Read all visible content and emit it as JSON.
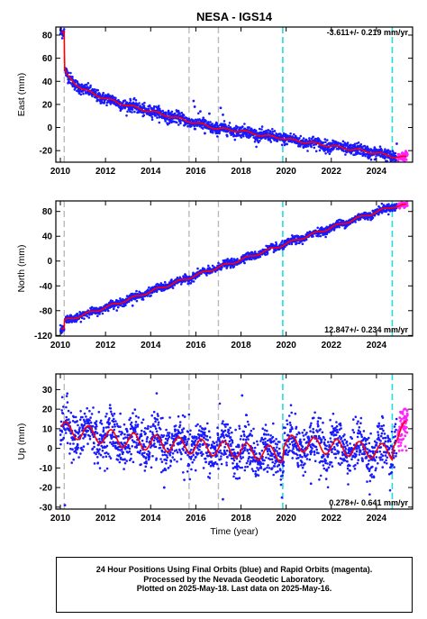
{
  "title": "NESA - IGS14",
  "chart_data": [
    {
      "type": "scatter",
      "ylabel": "East (mm)",
      "xlim": [
        2009.8,
        2025.6
      ],
      "ylim": [
        -30,
        87
      ],
      "yticks": [
        -20,
        0,
        20,
        40,
        60,
        80
      ],
      "xticks": [
        2010,
        2012,
        2014,
        2016,
        2018,
        2020,
        2022,
        2024
      ],
      "rate": "-3.611+/- 0.219 mm/yr",
      "model_points": [
        [
          2010.05,
          82
        ],
        [
          2010.17,
          82
        ],
        [
          2010.19,
          50
        ],
        [
          2010.3,
          45
        ],
        [
          2010.6,
          39
        ],
        [
          2011,
          33
        ],
        [
          2012,
          25
        ],
        [
          2013,
          19
        ],
        [
          2014,
          14
        ],
        [
          2015,
          9
        ],
        [
          2016,
          4
        ],
        [
          2017,
          -1
        ],
        [
          2018,
          -3
        ],
        [
          2019,
          -7
        ],
        [
          2019.85,
          -9
        ],
        [
          2020,
          -10
        ],
        [
          2021,
          -13
        ],
        [
          2022,
          -16
        ],
        [
          2023,
          -19
        ],
        [
          2024,
          -22
        ],
        [
          2024.7,
          -25
        ],
        [
          2025.3,
          -26
        ]
      ],
      "vlines_gray": [
        2010.17,
        2015.7,
        2017.0
      ],
      "vlines_cyan": [
        2019.85,
        2024.7
      ],
      "scatter_sd": 2.5,
      "seasonal_amp": 1,
      "final_range": [
        2010.0,
        2024.9
      ],
      "rapid_range": [
        2024.95,
        2025.38
      ],
      "n_final": 1800,
      "n_rapid": 60,
      "outliers": [
        [
          2015.9,
          23
        ],
        [
          2015.95,
          18
        ],
        [
          2016.2,
          14
        ],
        [
          2016.6,
          12
        ],
        [
          2017.1,
          17
        ],
        [
          2017.2,
          11
        ],
        [
          2016.9,
          -4
        ],
        [
          2016.4,
          -5
        ],
        [
          2024.9,
          -14
        ]
      ]
    },
    {
      "type": "scatter",
      "ylabel": "North (mm)",
      "xlim": [
        2009.8,
        2025.6
      ],
      "ylim": [
        -121,
        97
      ],
      "yticks": [
        -120,
        -80,
        -40,
        0,
        40,
        80
      ],
      "xticks": [
        2010,
        2012,
        2014,
        2016,
        2018,
        2020,
        2022,
        2024
      ],
      "rate": "12.847+/- 0.234 mm/yr",
      "model_points": [
        [
          2010.05,
          -110
        ],
        [
          2010.17,
          -110
        ],
        [
          2010.19,
          -96
        ],
        [
          2011,
          -87
        ],
        [
          2012,
          -75
        ],
        [
          2013,
          -62
        ],
        [
          2014,
          -49
        ],
        [
          2015,
          -36
        ],
        [
          2016,
          -23
        ],
        [
          2017,
          -10
        ],
        [
          2018,
          2
        ],
        [
          2019,
          15
        ],
        [
          2019.85,
          26
        ],
        [
          2020,
          28
        ],
        [
          2021,
          41
        ],
        [
          2022,
          54
        ],
        [
          2023,
          67
        ],
        [
          2024,
          79
        ],
        [
          2024.7,
          88
        ],
        [
          2025.3,
          90
        ]
      ],
      "vlines_gray": [
        2010.17,
        2015.7,
        2017.0
      ],
      "vlines_cyan": [
        2019.85,
        2024.7
      ],
      "scatter_sd": 3,
      "seasonal_amp": 2,
      "final_range": [
        2010.0,
        2024.9
      ],
      "rapid_range": [
        2024.95,
        2025.38
      ],
      "n_final": 1800,
      "n_rapid": 60,
      "outliers": [
        [
          2018.1,
          9
        ],
        [
          2013.2,
          -72
        ]
      ]
    },
    {
      "type": "scatter",
      "ylabel": "Up (mm)",
      "xlabel": "Time (year)",
      "xlim": [
        2009.8,
        2025.6
      ],
      "ylim": [
        -31,
        38
      ],
      "yticks": [
        -30,
        -20,
        -10,
        0,
        10,
        20,
        30
      ],
      "xticks": [
        2010,
        2012,
        2014,
        2016,
        2018,
        2020,
        2022,
        2024
      ],
      "rate": "0.278+/- 0.641 mm/yr",
      "model_points": [
        [
          2010.0,
          10
        ],
        [
          2013.0,
          4
        ],
        [
          2019.85,
          -3
        ],
        [
          2019.9,
          3
        ],
        [
          2024.7,
          -2
        ],
        [
          2024.75,
          5
        ],
        [
          2025.3,
          10
        ]
      ],
      "vlines_gray": [
        2010.17,
        2015.7,
        2017.0
      ],
      "vlines_cyan": [
        2019.85,
        2024.7
      ],
      "scatter_sd": 6,
      "seasonal_amp": 4,
      "final_range": [
        2010.0,
        2024.9
      ],
      "rapid_range": [
        2024.95,
        2025.38
      ],
      "n_final": 1800,
      "n_rapid": 70,
      "outliers": [
        [
          2010.2,
          -29
        ],
        [
          2017.2,
          -26
        ],
        [
          2018.05,
          27
        ],
        [
          2014.6,
          -20
        ],
        [
          2021.1,
          -18
        ]
      ]
    }
  ],
  "footer": {
    "line1": "24 Hour Positions Using Final Orbits (blue) and Rapid Orbits (magenta).",
    "line2": "Processed by the Nevada Geodetic Laboratory.",
    "line3": "Plotted on 2025-May-18. Last data on 2025-May-16."
  },
  "colors": {
    "final": "#1a1aff",
    "rapid": "#ff22ff",
    "model": "#ff0000",
    "gray_line": "#bbbbbb",
    "cyan_line": "#22dddd"
  }
}
